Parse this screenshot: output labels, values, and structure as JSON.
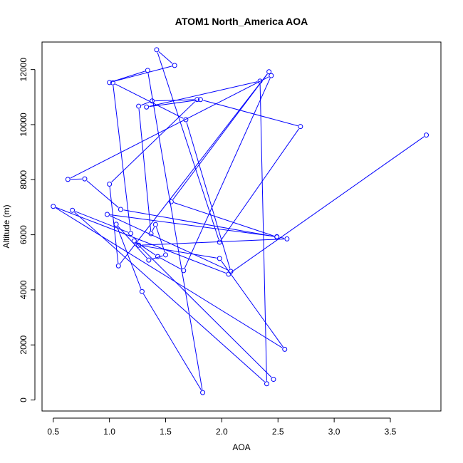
{
  "chart_data": {
    "type": "line",
    "title": "ATOM1 North_America AOA",
    "xlabel": "AOA",
    "ylabel": "Altitude (m)",
    "xlim": [
      0.4,
      3.95
    ],
    "ylim": [
      -400,
      13000
    ],
    "x_ticks": [
      0.5,
      1.0,
      1.5,
      2.0,
      2.5,
      3.0,
      3.5
    ],
    "x_tick_labels": [
      "0.5",
      "1.0",
      "1.5",
      "2.0",
      "2.5",
      "3.0",
      "3.5"
    ],
    "y_ticks": [
      0,
      2000,
      4000,
      6000,
      8000,
      10000,
      12000
    ],
    "y_tick_labels": [
      "0",
      "2000",
      "4000",
      "6000",
      "8000",
      "10000",
      "12000"
    ],
    "grid": false,
    "series": [
      {
        "color": "#0000ff",
        "x": [
          2.46,
          1.22,
          1.43,
          1.66,
          2.44,
          0.63,
          0.78,
          1.1,
          2.49,
          1.55,
          2.42,
          1.08,
          1.0,
          1.78,
          1.38,
          1.26,
          1.37,
          1.41,
          1.5,
          1.35,
          1.06,
          1.29,
          1.83,
          1.34,
          1.0,
          1.58,
          1.42,
          1.98,
          2.7,
          1.81,
          1.33,
          2.34,
          2.4,
          0.67,
          1.19,
          1.03,
          1.68,
          2.08,
          0.98,
          2.49,
          2.58,
          1.26,
          1.98,
          2.56,
          0.5,
          2.06,
          3.82
        ],
        "y": [
          750,
          5780,
          5210,
          4700,
          11780,
          8010,
          8030,
          6920,
          5920,
          7200,
          11920,
          4870,
          7840,
          10910,
          10860,
          10670,
          6040,
          6370,
          5270,
          5080,
          6380,
          3940,
          270,
          11970,
          11530,
          12150,
          12720,
          5730,
          9930,
          10910,
          10640,
          11580,
          590,
          6890,
          6050,
          11520,
          10180,
          4670,
          6740,
          5930,
          5850,
          5620,
          5140,
          1840,
          7030,
          4570,
          9620
        ]
      }
    ]
  }
}
